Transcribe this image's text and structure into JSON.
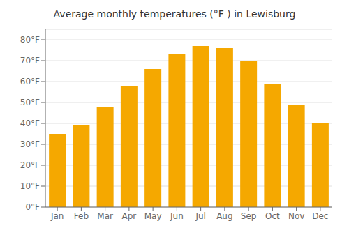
{
  "chart_data": {
    "type": "bar",
    "title": "Average monthly temperatures (°F ) in Lewisburg",
    "categories": [
      "Jan",
      "Feb",
      "Mar",
      "Apr",
      "May",
      "Jun",
      "Jul",
      "Aug",
      "Sep",
      "Oct",
      "Nov",
      "Dec"
    ],
    "values": [
      35,
      39,
      48,
      58,
      66,
      73,
      77,
      76,
      70,
      59,
      49,
      40
    ],
    "color": "#F5A800",
    "ylim": [
      0,
      85
    ],
    "yticks": [
      {
        "value": 0,
        "label": "0°F"
      },
      {
        "value": 10,
        "label": "10°F"
      },
      {
        "value": 20,
        "label": "20°F"
      },
      {
        "value": 30,
        "label": "30°F"
      },
      {
        "value": 40,
        "label": "40°F"
      },
      {
        "value": 50,
        "label": "50°F"
      },
      {
        "value": 60,
        "label": "60°F"
      },
      {
        "value": 70,
        "label": "70°F"
      },
      {
        "value": 80,
        "label": "80°F"
      }
    ],
    "grid": true
  }
}
